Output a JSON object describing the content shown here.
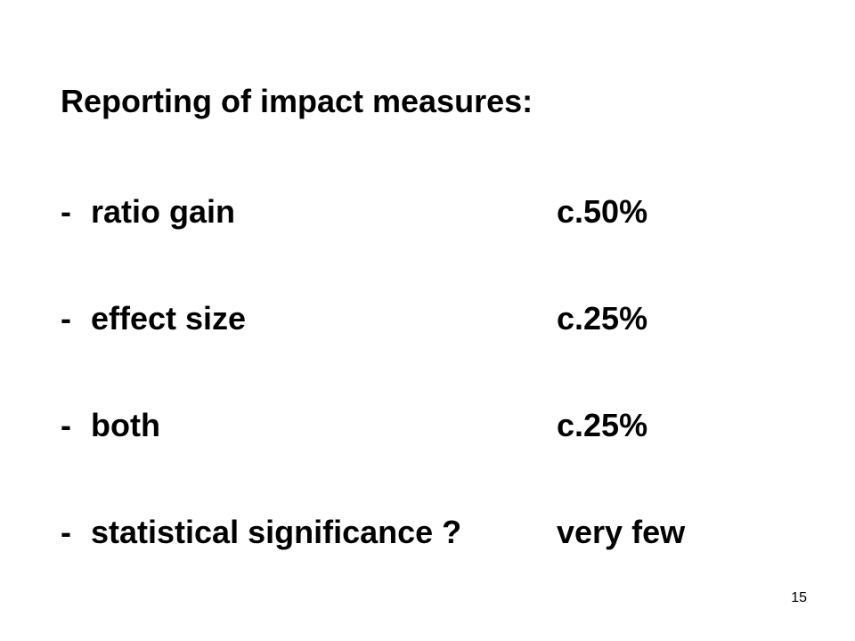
{
  "slide": {
    "title": "Reporting of impact measures:",
    "items": [
      {
        "marker": "-",
        "label": "ratio gain",
        "value": "c.50%"
      },
      {
        "marker": "-",
        "label": "effect size",
        "value": "c.25%"
      },
      {
        "marker": "-",
        "label": "both",
        "value": "c.25%"
      },
      {
        "marker": "-",
        "label": "statistical significance ?",
        "value": "very few"
      }
    ],
    "page_number": "15"
  }
}
